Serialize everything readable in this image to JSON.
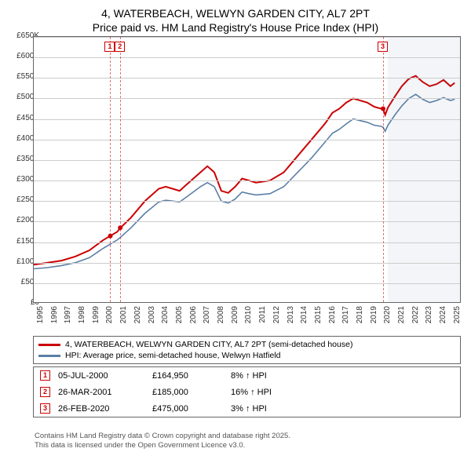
{
  "title": {
    "line1": "4, WATERBEACH, WELWYN GARDEN CITY, AL7 2PT",
    "line2": "Price paid vs. HM Land Registry's House Price Index (HPI)",
    "fontsize": 14,
    "color": "#000000"
  },
  "chart": {
    "type": "line",
    "background_color": "#ffffff",
    "grid_color": "#cccccc",
    "border_color": "#666666",
    "xlim": [
      1995,
      2025.8
    ],
    "ylim": [
      0,
      650000
    ],
    "ytick_step": 50000,
    "y_ticks": [
      "£0",
      "£50K",
      "£100K",
      "£150K",
      "£200K",
      "£250K",
      "£300K",
      "£350K",
      "£400K",
      "£450K",
      "£500K",
      "£550K",
      "£600K",
      "£650K"
    ],
    "x_ticks": [
      "1995",
      "1996",
      "1997",
      "1998",
      "1999",
      "2000",
      "2001",
      "2002",
      "2003",
      "2004",
      "2005",
      "2006",
      "2007",
      "2008",
      "2009",
      "2010",
      "2011",
      "2012",
      "2013",
      "2014",
      "2015",
      "2016",
      "2017",
      "2018",
      "2019",
      "2020",
      "2021",
      "2022",
      "2023",
      "2024",
      "2025"
    ],
    "tick_fontsize": 10,
    "shaded_region": {
      "x_start": 2020.5,
      "x_end": 2025.8,
      "color": "rgba(100,130,160,0.08)"
    },
    "series": [
      {
        "name": "price_paid",
        "color": "#cc0000",
        "width": 2,
        "points": [
          [
            1995,
            95000
          ],
          [
            1996,
            100000
          ],
          [
            1997,
            105000
          ],
          [
            1998,
            115000
          ],
          [
            1999,
            130000
          ],
          [
            2000,
            155000
          ],
          [
            2000.5,
            165000
          ],
          [
            2001,
            175000
          ],
          [
            2001.25,
            185000
          ],
          [
            2002,
            210000
          ],
          [
            2003,
            250000
          ],
          [
            2004,
            280000
          ],
          [
            2004.5,
            285000
          ],
          [
            2005,
            280000
          ],
          [
            2005.5,
            275000
          ],
          [
            2006,
            290000
          ],
          [
            2007,
            320000
          ],
          [
            2007.5,
            335000
          ],
          [
            2008,
            320000
          ],
          [
            2008.5,
            275000
          ],
          [
            2009,
            270000
          ],
          [
            2009.5,
            285000
          ],
          [
            2010,
            305000
          ],
          [
            2010.5,
            300000
          ],
          [
            2011,
            295000
          ],
          [
            2012,
            300000
          ],
          [
            2013,
            320000
          ],
          [
            2014,
            360000
          ],
          [
            2015,
            400000
          ],
          [
            2016,
            440000
          ],
          [
            2016.5,
            465000
          ],
          [
            2017,
            475000
          ],
          [
            2017.5,
            490000
          ],
          [
            2018,
            500000
          ],
          [
            2018.5,
            495000
          ],
          [
            2019,
            490000
          ],
          [
            2019.5,
            480000
          ],
          [
            2020,
            475000
          ],
          [
            2020.15,
            475000
          ],
          [
            2020.3,
            460000
          ],
          [
            2020.5,
            478000
          ],
          [
            2021,
            505000
          ],
          [
            2021.5,
            530000
          ],
          [
            2022,
            548000
          ],
          [
            2022.5,
            555000
          ],
          [
            2023,
            540000
          ],
          [
            2023.5,
            530000
          ],
          [
            2024,
            535000
          ],
          [
            2024.5,
            545000
          ],
          [
            2025,
            530000
          ],
          [
            2025.3,
            538000
          ]
        ]
      },
      {
        "name": "hpi",
        "color": "#5b7fa6",
        "width": 1.6,
        "points": [
          [
            1995,
            85000
          ],
          [
            1996,
            88000
          ],
          [
            1997,
            93000
          ],
          [
            1998,
            100000
          ],
          [
            1999,
            112000
          ],
          [
            2000,
            135000
          ],
          [
            2000.5,
            145000
          ],
          [
            2001,
            155000
          ],
          [
            2001.25,
            162000
          ],
          [
            2002,
            185000
          ],
          [
            2003,
            220000
          ],
          [
            2004,
            248000
          ],
          [
            2004.5,
            252000
          ],
          [
            2005,
            250000
          ],
          [
            2005.5,
            248000
          ],
          [
            2006,
            260000
          ],
          [
            2007,
            285000
          ],
          [
            2007.5,
            295000
          ],
          [
            2008,
            285000
          ],
          [
            2008.5,
            250000
          ],
          [
            2009,
            245000
          ],
          [
            2009.5,
            255000
          ],
          [
            2010,
            272000
          ],
          [
            2010.5,
            268000
          ],
          [
            2011,
            265000
          ],
          [
            2012,
            268000
          ],
          [
            2013,
            285000
          ],
          [
            2014,
            320000
          ],
          [
            2015,
            355000
          ],
          [
            2016,
            395000
          ],
          [
            2016.5,
            415000
          ],
          [
            2017,
            425000
          ],
          [
            2017.5,
            438000
          ],
          [
            2018,
            450000
          ],
          [
            2018.5,
            446000
          ],
          [
            2019,
            442000
          ],
          [
            2019.5,
            435000
          ],
          [
            2020,
            432000
          ],
          [
            2020.15,
            430000
          ],
          [
            2020.3,
            420000
          ],
          [
            2020.5,
            435000
          ],
          [
            2021,
            460000
          ],
          [
            2021.5,
            482000
          ],
          [
            2022,
            500000
          ],
          [
            2022.5,
            510000
          ],
          [
            2023,
            498000
          ],
          [
            2023.5,
            490000
          ],
          [
            2024,
            495000
          ],
          [
            2024.5,
            502000
          ],
          [
            2025,
            495000
          ],
          [
            2025.3,
            498000
          ]
        ]
      }
    ],
    "sale_markers": [
      {
        "n": "1",
        "x": 2000.51,
        "y": 164950,
        "color": "#cc0000"
      },
      {
        "n": "2",
        "x": 2001.23,
        "y": 185000,
        "color": "#cc0000"
      },
      {
        "n": "3",
        "x": 2020.15,
        "y": 475000,
        "color": "#cc0000"
      }
    ],
    "marker_dot_radius": 3
  },
  "legend": {
    "items": [
      {
        "color": "#cc0000",
        "label": "4, WATERBEACH, WELWYN GARDEN CITY, AL7 2PT (semi-detached house)"
      },
      {
        "color": "#5b7fa6",
        "label": "HPI: Average price, semi-detached house, Welwyn Hatfield"
      }
    ],
    "fontsize": 10.5
  },
  "sales_table": {
    "rows": [
      {
        "n": "1",
        "color": "#cc0000",
        "date": "05-JUL-2000",
        "price": "£164,950",
        "pct": "8% ↑  HPI"
      },
      {
        "n": "2",
        "color": "#cc0000",
        "date": "26-MAR-2001",
        "price": "£185,000",
        "pct": "16% ↑  HPI"
      },
      {
        "n": "3",
        "color": "#cc0000",
        "date": "26-FEB-2020",
        "price": "£475,000",
        "pct": "3% ↑  HPI"
      }
    ],
    "fontsize": 11
  },
  "footer": {
    "line1": "Contains HM Land Registry data © Crown copyright and database right 2025.",
    "line2": "This data is licensed under the Open Government Licence v3.0.",
    "fontsize": 9.5,
    "color": "#555555"
  }
}
